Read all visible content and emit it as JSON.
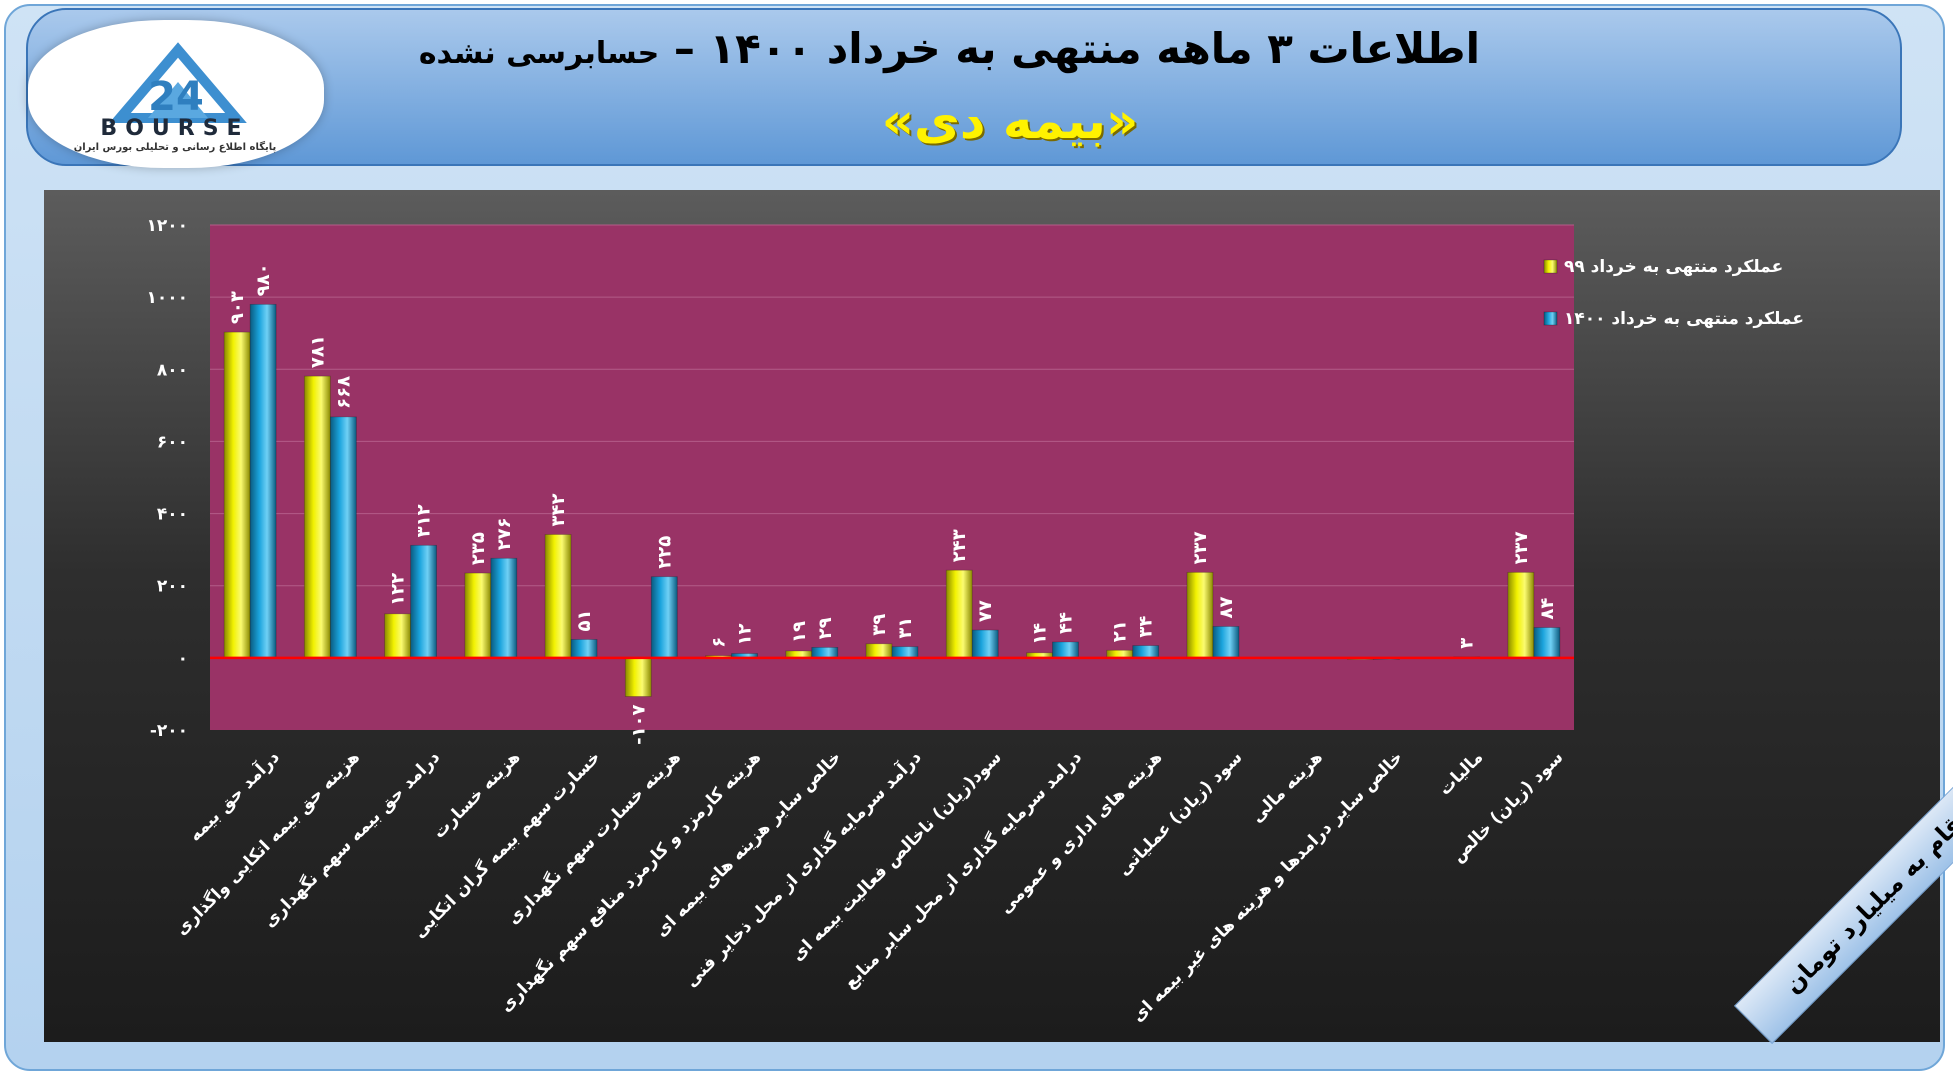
{
  "header": {
    "title": "اطلاعات ۳ ماهه منتهی به خرداد ۱۴۰۰ –",
    "title_note": "حسابرسی نشده",
    "subtitle": "«بیمه دی»"
  },
  "logo": {
    "brand": "BOURSE",
    "tagline": "پایگاه اطلاع رسانی و تحلیلی بورس ایران",
    "number": "24"
  },
  "unit_note": "ارقام به میلیارد تومان",
  "colors": {
    "series1": "#f2f200",
    "series2": "#1aa3dc",
    "plot_bg": "#993366",
    "zero_line": "#ff0000"
  },
  "chart_data": {
    "type": "bar",
    "categories": [
      "درآمد حق بیمه",
      "هزینه حق بیمه اتکایی واگذاری",
      "درامد حق بیمه سهم نگهداری",
      "هزینه خسارت",
      "خسارت سهم بیمه گران اتکایی",
      "هزینه خسارت سهم نگهداری",
      "هزینه کارمزد و کارمزد منافع سهم نگهداری",
      "خالص سایر هزینه های بیمه ای",
      "درآمد سرمایه گذاری از محل ذخایر فنی",
      "سود(زیان) ناخالص فعالیت بیمه ای",
      "درامد سرمایه گذاری از محل سایر منابع",
      "هزینه های اداری و عمومی",
      "سود (زیان) عملیاتی",
      "هزینه مالی",
      "خالص سایر درامدها و هزینه های غیر بیمه ای",
      "مالیات",
      "سود (زیان) خالص"
    ],
    "series": [
      {
        "name": "عملکرد منتهی به خرداد ۹۹",
        "values": [
          903,
          781,
          122,
          235,
          342,
          -107,
          6,
          19,
          39,
          243,
          14,
          21,
          237,
          0,
          -3,
          0,
          237
        ],
        "labels": [
          "۹۰۳",
          "۷۸۱",
          "۱۲۲",
          "۲۳۵",
          "۳۴۲",
          "-۱۰۷",
          "۶",
          "۱۹",
          "۳۹",
          "۲۴۳",
          "۱۴",
          "۲۱",
          "۲۳۷",
          "",
          "",
          "",
          "۲۳۷"
        ]
      },
      {
        "name": "عملکرد منتهی به خرداد ۱۴۰۰",
        "values": [
          980,
          668,
          312,
          276,
          51,
          225,
          12,
          29,
          31,
          77,
          44,
          34,
          87,
          0,
          -2,
          3,
          84
        ],
        "labels": [
          "۹۸۰",
          "۶۶۸",
          "۳۱۲",
          "۲۷۶",
          "۵۱",
          "۲۲۵",
          "۱۲",
          "۲۹",
          "۳۱",
          "۷۷",
          "۴۴",
          "۳۴",
          "۸۷",
          "",
          "",
          "۳",
          "۸۴"
        ]
      }
    ],
    "yticks": [
      "۱۲۰۰",
      "۱۰۰۰",
      "۸۰۰",
      "۶۰۰",
      "۴۰۰",
      "۲۰۰",
      "۰",
      "-۲۰۰"
    ],
    "ylim": [
      -200,
      1200
    ],
    "grid": true,
    "legend_position": "top-right"
  }
}
